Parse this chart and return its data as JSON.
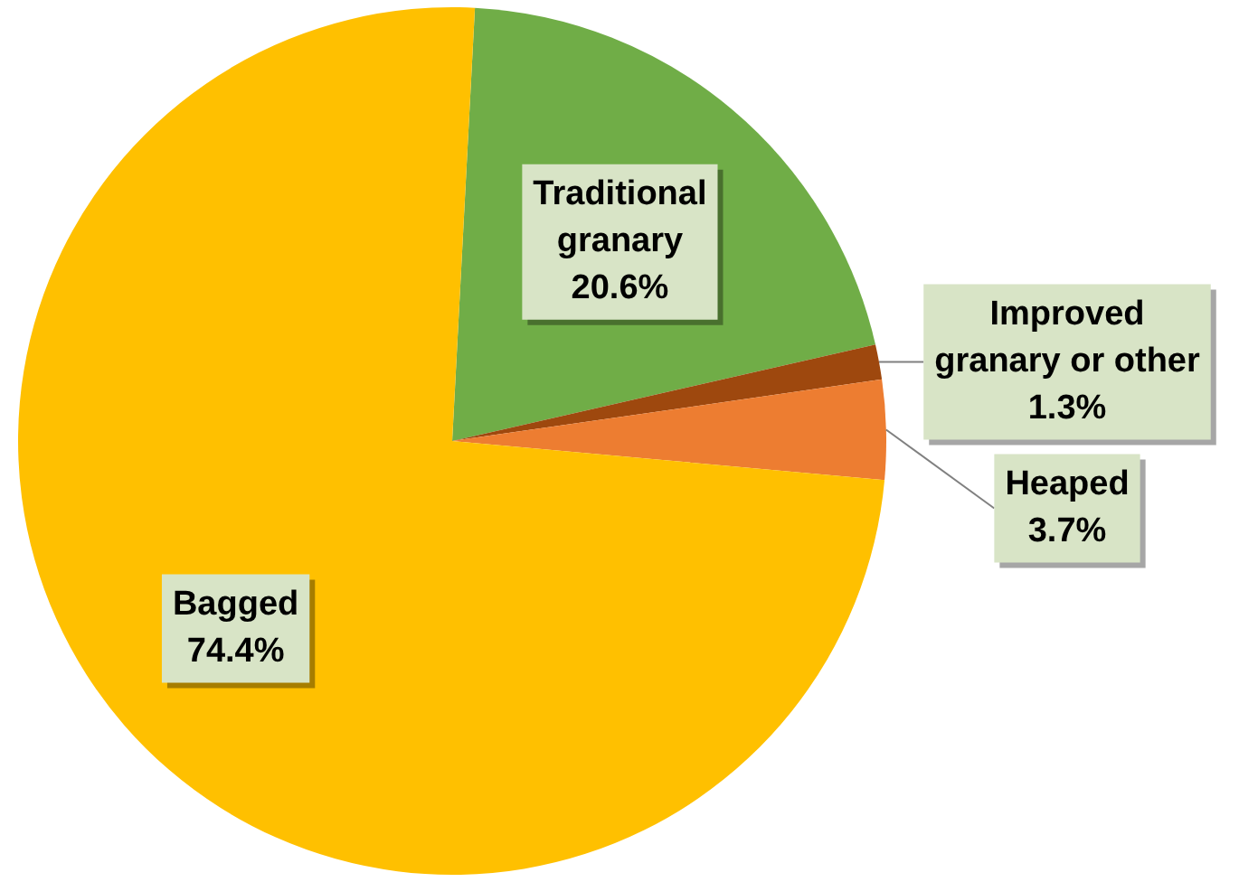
{
  "chart_data": {
    "type": "pie",
    "categories": [
      "Traditional granary",
      "Improved granary or other",
      "Heaped",
      "Bagged"
    ],
    "values": [
      20.6,
      1.3,
      3.7,
      74.4
    ],
    "value_labels": [
      "20.6%",
      "1.3%",
      "3.7%",
      "74.4%"
    ],
    "colors": [
      "#70ad47",
      "#9e480e",
      "#ed7d31",
      "#ffc000"
    ],
    "legend": false
  }
}
